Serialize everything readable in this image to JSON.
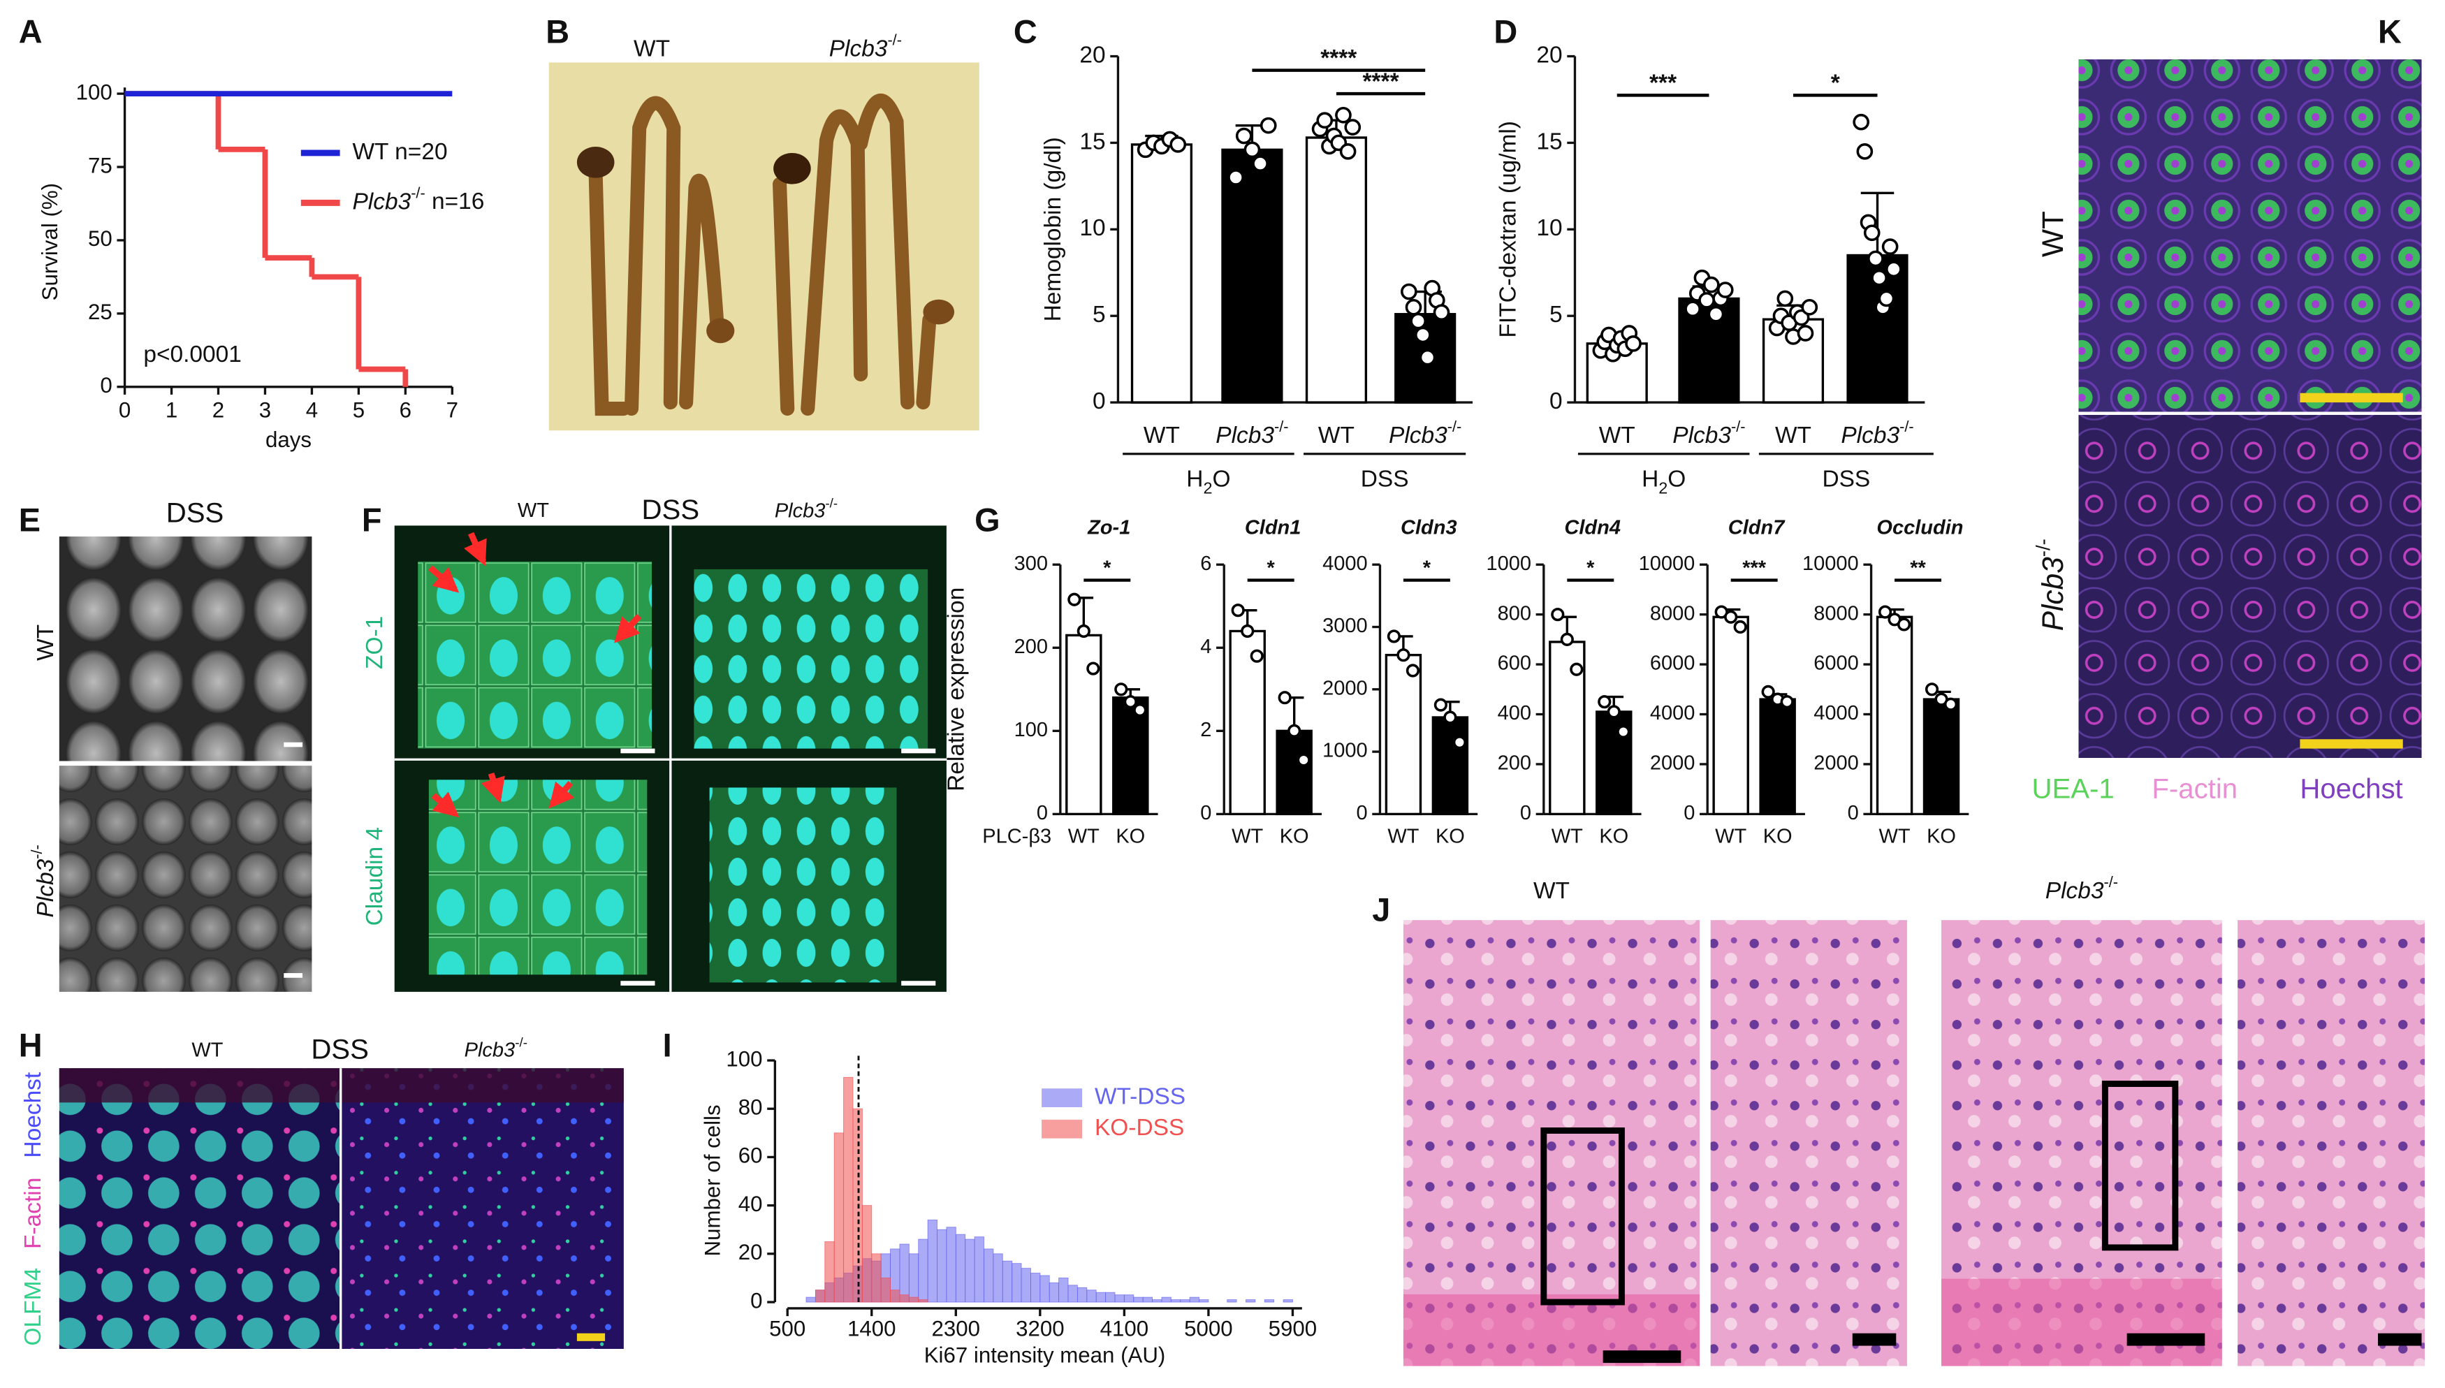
{
  "chart_data": [
    {
      "panel": "A",
      "type": "line",
      "step": true,
      "x_label": "days",
      "y_label": "Survival (%)",
      "annotation": "p<0.0001",
      "xlim": [
        0,
        7
      ],
      "xticks": [
        0,
        1,
        2,
        3,
        4,
        5,
        6,
        7
      ],
      "ylim": [
        0,
        100
      ],
      "yticks": [
        0,
        25,
        50,
        75,
        100
      ],
      "series": [
        {
          "name": "WT n=20",
          "color": "#1f23d6",
          "x": [
            0,
            7
          ],
          "values": [
            100,
            100
          ]
        },
        {
          "name": "Plcb3-/- n=16",
          "color": "#f04848",
          "x": [
            0,
            2,
            3,
            4,
            5,
            6
          ],
          "values": [
            100,
            81,
            44,
            37.5,
            6,
            0
          ]
        }
      ]
    },
    {
      "panel": "C",
      "type": "bar",
      "y_label": "Hemoglobin (g/dl)",
      "categories": [
        "WT",
        "Plcb3-/-",
        "WT",
        "Plcb3-/-"
      ],
      "groups": [
        "H2O",
        "DSS"
      ],
      "values": [
        14.9,
        14.6,
        15.3,
        5.1
      ],
      "errors": [
        0.5,
        1.4,
        1.0,
        1.3
      ],
      "points": [
        [
          14.6,
          15.0,
          14.8,
          15.2,
          14.9
        ],
        [
          13.0,
          15.4,
          14.6,
          13.8,
          16.0
        ],
        [
          15.8,
          16.3,
          14.8,
          15.4,
          15.0,
          16.6,
          14.5,
          15.9
        ],
        [
          6.4,
          5.5,
          4.7,
          3.9,
          2.6,
          6.6,
          5.9,
          5.2
        ]
      ],
      "colors": [
        "#ffffff",
        "#000000",
        "#ffffff",
        "#000000"
      ],
      "ylim": [
        0,
        20
      ],
      "yticks": [
        0,
        5,
        10,
        15,
        20
      ],
      "significance": [
        "****",
        "****"
      ]
    },
    {
      "panel": "D",
      "type": "bar",
      "y_label": "FITC-dextran (ug/ml)",
      "categories": [
        "WT",
        "Plcb3-/-",
        "WT",
        "Plcb3-/-"
      ],
      "groups": [
        "H2O",
        "DSS"
      ],
      "values": [
        3.4,
        6.0,
        4.8,
        8.5
      ],
      "errors": [
        0.5,
        0.7,
        0.8,
        3.6
      ],
      "points": [
        [
          3.0,
          3.5,
          3.9,
          2.8,
          3.3,
          3.7,
          3.1,
          4.0,
          3.4
        ],
        [
          5.4,
          6.3,
          7.2,
          5.9,
          6.8,
          5.1,
          6.0,
          6.5
        ],
        [
          4.3,
          5.0,
          6.0,
          4.6,
          3.8,
          5.2,
          4.9,
          4.0,
          5.5
        ],
        [
          16.2,
          14.5,
          10.4,
          9.8,
          8.3,
          7.2,
          5.5,
          6.0,
          9.0,
          7.7
        ]
      ],
      "colors": [
        "#ffffff",
        "#000000",
        "#ffffff",
        "#000000"
      ],
      "ylim": [
        0,
        20
      ],
      "yticks": [
        0,
        5,
        10,
        15,
        20
      ],
      "significance": [
        "***",
        "*"
      ]
    },
    {
      "panel": "G",
      "type": "bar",
      "title": "Zo-1",
      "y_label": "Relative expression",
      "category_axis_label": "PLC-β3",
      "categories": [
        "WT",
        "KO"
      ],
      "values": [
        215,
        140
      ],
      "errors": [
        45,
        10
      ],
      "points": [
        [
          258,
          220,
          175
        ],
        [
          150,
          135,
          125
        ]
      ],
      "colors": [
        "#ffffff",
        "#000000"
      ],
      "ylim": [
        0,
        300
      ],
      "yticks": [
        0,
        100,
        200,
        300
      ],
      "significance": [
        "*"
      ]
    },
    {
      "type": "bar",
      "title": "Cldn1",
      "categories": [
        "WT",
        "KO"
      ],
      "values": [
        4.4,
        2.0
      ],
      "errors": [
        0.5,
        0.8
      ],
      "points": [
        [
          4.9,
          4.4,
          3.8
        ],
        [
          2.8,
          2.0,
          1.3
        ]
      ],
      "colors": [
        "#ffffff",
        "#000000"
      ],
      "ylim": [
        0,
        6
      ],
      "yticks": [
        0,
        2,
        4,
        6
      ],
      "significance": [
        "*"
      ]
    },
    {
      "type": "bar",
      "title": "Cldn3",
      "categories": [
        "WT",
        "KO"
      ],
      "values": [
        2550,
        1550
      ],
      "errors": [
        300,
        250
      ],
      "points": [
        [
          2850,
          2550,
          2300
        ],
        [
          1750,
          1550,
          1150
        ]
      ],
      "colors": [
        "#ffffff",
        "#000000"
      ],
      "ylim": [
        0,
        4000
      ],
      "yticks": [
        0,
        1000,
        2000,
        3000,
        4000
      ],
      "significance": [
        "*"
      ]
    },
    {
      "type": "bar",
      "title": "Cldn4",
      "categories": [
        "WT",
        "KO"
      ],
      "values": [
        690,
        410
      ],
      "errors": [
        100,
        60
      ],
      "points": [
        [
          800,
          700,
          580
        ],
        [
          450,
          410,
          330
        ]
      ],
      "colors": [
        "#ffffff",
        "#000000"
      ],
      "ylim": [
        0,
        1000
      ],
      "yticks": [
        0,
        200,
        400,
        600,
        800,
        1000
      ],
      "significance": [
        "*"
      ]
    },
    {
      "type": "bar",
      "title": "Cldn7",
      "categories": [
        "WT",
        "KO"
      ],
      "values": [
        7900,
        4600
      ],
      "errors": [
        300,
        200
      ],
      "points": [
        [
          8100,
          7900,
          7500
        ],
        [
          4900,
          4600,
          4500
        ]
      ],
      "colors": [
        "#ffffff",
        "#000000"
      ],
      "ylim": [
        0,
        10000
      ],
      "yticks": [
        0,
        2000,
        4000,
        6000,
        8000,
        10000
      ],
      "significance": [
        "***"
      ]
    },
    {
      "type": "bar",
      "title": "Occludin",
      "categories": [
        "WT",
        "KO"
      ],
      "values": [
        7900,
        4600
      ],
      "errors": [
        300,
        300
      ],
      "points": [
        [
          8100,
          7800,
          7600
        ],
        [
          5000,
          4600,
          4400
        ]
      ],
      "colors": [
        "#ffffff",
        "#000000"
      ],
      "ylim": [
        0,
        10000
      ],
      "yticks": [
        0,
        2000,
        4000,
        6000,
        8000,
        10000
      ],
      "significance": [
        "**"
      ]
    },
    {
      "panel": "I",
      "type": "histogram",
      "x_label": "Ki67 intensity mean (AU)",
      "y_label": "Number of cells",
      "bins": [
        500,
        600,
        700,
        800,
        900,
        1000,
        1100,
        1200,
        1300,
        1400,
        1500,
        1600,
        1700,
        1800,
        1900,
        2000,
        2100,
        2200,
        2300,
        2400,
        2500,
        2600,
        2700,
        2800,
        2900,
        3000,
        3100,
        3200,
        3300,
        3400,
        3500,
        3600,
        3700,
        3800,
        3900,
        4000,
        4100,
        4200,
        4300,
        4400,
        4500,
        4600,
        4700,
        4800,
        4900,
        5000,
        5100,
        5200,
        5300,
        5400,
        5500,
        5600,
        5700,
        5800,
        5900
      ],
      "series": [
        {
          "name": "WT-DSS",
          "color": "#6464f0",
          "values": [
            0,
            0,
            2,
            5,
            8,
            10,
            12,
            15,
            18,
            17,
            20,
            22,
            24,
            20,
            26,
            34,
            30,
            31,
            28,
            26,
            27,
            22,
            20,
            17,
            16,
            14,
            12,
            11,
            8,
            10,
            7,
            6,
            5,
            4,
            4,
            3,
            3,
            2,
            2,
            1,
            2,
            1,
            1,
            2,
            1,
            0,
            0,
            1,
            0,
            1,
            0,
            1,
            0,
            1
          ]
        },
        {
          "name": "KO-DSS",
          "color": "#f05050",
          "values": [
            0,
            0,
            0,
            5,
            25,
            70,
            93,
            80,
            40,
            20,
            10,
            5,
            3,
            2,
            1,
            0,
            0,
            0,
            0,
            0,
            0,
            0,
            0,
            0,
            0,
            0,
            0,
            0,
            0,
            0,
            0,
            0,
            0,
            0,
            0,
            0,
            0,
            0,
            0,
            0,
            0,
            0,
            0,
            0,
            0,
            0,
            0,
            0,
            0,
            0,
            0,
            0,
            0,
            0
          ]
        }
      ],
      "threshold": 1260,
      "xlim": [
        500,
        6000
      ],
      "xticks": [
        500,
        1400,
        2300,
        3200,
        4100,
        5000,
        5900
      ],
      "ylim": [
        0,
        100
      ],
      "yticks": [
        0,
        20,
        40,
        60,
        80,
        100
      ]
    }
  ],
  "images": [
    {
      "panel": "B",
      "labels": [
        "WT",
        "Plcb3-/-"
      ]
    },
    {
      "panel": "E",
      "labels": [
        "DSS",
        "WT",
        "Plcb3-/-"
      ]
    },
    {
      "panel": "F",
      "labels": [
        "WT",
        "DSS",
        "Plcb3-/-",
        "ZO-1",
        "Claudin 4"
      ]
    },
    {
      "panel": "H",
      "labels": [
        "WT",
        "DSS",
        "Plcb3-/-",
        "OLFM4",
        "F-actin",
        "Hoechst"
      ]
    },
    {
      "panel": "J",
      "labels": [
        "WT",
        "Plcb3-/-"
      ]
    },
    {
      "panel": "K",
      "labels": [
        "WT",
        "Plcb3-/-",
        "UEA-1",
        "F-actin",
        "Hoechst"
      ]
    }
  ]
}
